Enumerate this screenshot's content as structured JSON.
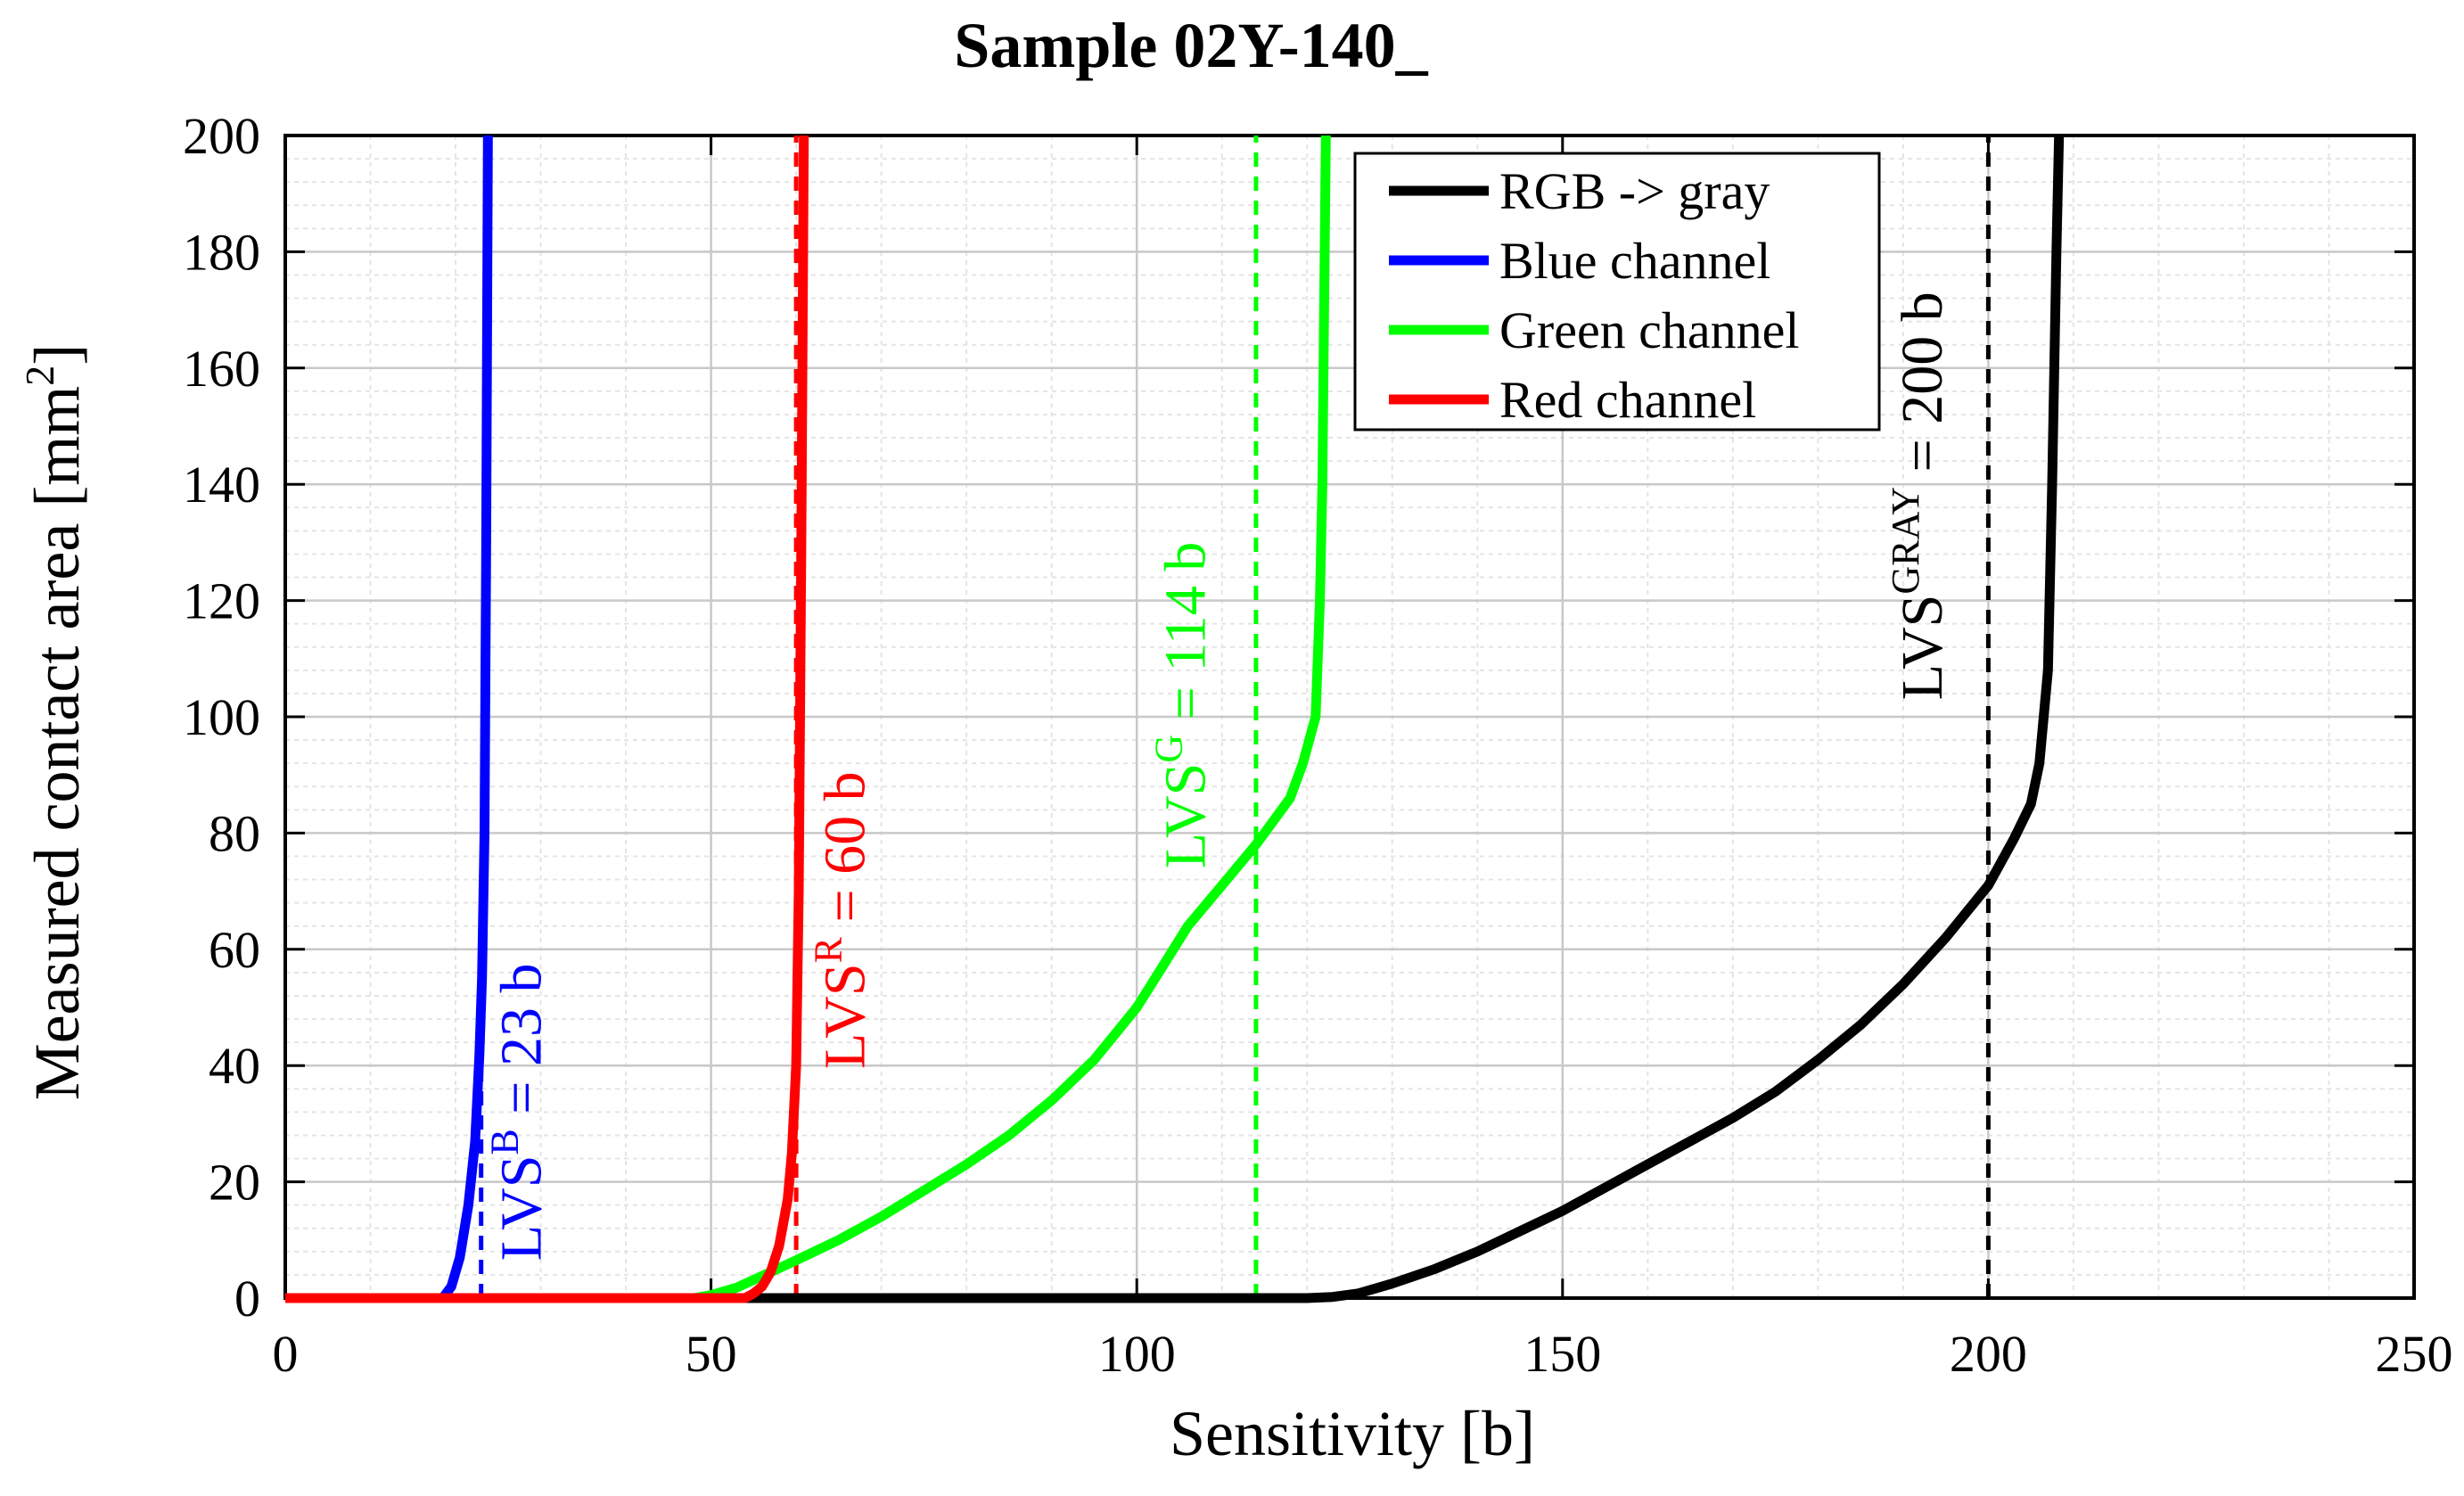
{
  "chart_data": {
    "type": "line",
    "title": "Sample 02Y-140_",
    "xlabel": "Sensitivity [b]",
    "ylabel_main": "Measured contact area [mm",
    "ylabel_sup": "2",
    "ylabel_end": "]",
    "xlim": [
      0,
      250
    ],
    "ylim": [
      0,
      200
    ],
    "x_ticks": [
      0,
      50,
      100,
      150,
      200,
      250
    ],
    "y_ticks": [
      0,
      20,
      40,
      60,
      80,
      100,
      120,
      140,
      160,
      180,
      200
    ],
    "x_minor_step": 10,
    "y_minor_step": 4,
    "grid": true,
    "legend_position": "top-right",
    "series": [
      {
        "name": "RGB -> gray",
        "color": "#000000",
        "points": [
          [
            0,
            0
          ],
          [
            120,
            0
          ],
          [
            123,
            0.2
          ],
          [
            126,
            0.8
          ],
          [
            130,
            2.5
          ],
          [
            135,
            5
          ],
          [
            140,
            8
          ],
          [
            145,
            11.5
          ],
          [
            150,
            15
          ],
          [
            155,
            19
          ],
          [
            160,
            23
          ],
          [
            165,
            27
          ],
          [
            170,
            31
          ],
          [
            175,
            35.5
          ],
          [
            180,
            41
          ],
          [
            185,
            47
          ],
          [
            190,
            54
          ],
          [
            195,
            62
          ],
          [
            200,
            71
          ],
          [
            203,
            79
          ],
          [
            205,
            85
          ],
          [
            206,
            92
          ],
          [
            207,
            108
          ],
          [
            207.5,
            140
          ],
          [
            208,
            180
          ],
          [
            208.3,
            200
          ]
        ]
      },
      {
        "name": "Blue channel",
        "color": "#0000ff",
        "points": [
          [
            0,
            0
          ],
          [
            18.5,
            0
          ],
          [
            19.5,
            2
          ],
          [
            20.5,
            7
          ],
          [
            21.5,
            16
          ],
          [
            22.3,
            27
          ],
          [
            22.8,
            42
          ],
          [
            23.1,
            55
          ],
          [
            23.4,
            80
          ],
          [
            23.6,
            130
          ],
          [
            23.8,
            200
          ]
        ]
      },
      {
        "name": "Green channel",
        "color": "#00ff00",
        "points": [
          [
            0,
            0
          ],
          [
            48,
            0
          ],
          [
            50,
            0.5
          ],
          [
            53,
            1.8
          ],
          [
            56,
            3.8
          ],
          [
            60,
            6.5
          ],
          [
            65,
            10
          ],
          [
            70,
            14
          ],
          [
            75,
            18.5
          ],
          [
            80,
            23
          ],
          [
            85,
            28
          ],
          [
            90,
            34
          ],
          [
            95,
            41
          ],
          [
            100,
            50
          ],
          [
            103,
            57
          ],
          [
            106,
            64
          ],
          [
            110,
            71
          ],
          [
            114,
            78
          ],
          [
            116,
            82
          ],
          [
            118,
            86
          ],
          [
            119.5,
            92
          ],
          [
            121,
            100
          ],
          [
            121.5,
            120
          ],
          [
            121.8,
            140
          ],
          [
            122,
            170
          ],
          [
            122.2,
            200
          ]
        ]
      },
      {
        "name": "Red channel",
        "color": "#ff0000",
        "points": [
          [
            0,
            0
          ],
          [
            54,
            0
          ],
          [
            55,
            0.8
          ],
          [
            56,
            2
          ],
          [
            57,
            4.5
          ],
          [
            58,
            9
          ],
          [
            59,
            17
          ],
          [
            59.5,
            25
          ],
          [
            60,
            40
          ],
          [
            60.3,
            70
          ],
          [
            60.6,
            130
          ],
          [
            60.9,
            200
          ]
        ]
      }
    ],
    "vlines": [
      {
        "x": 23,
        "ytop": 55,
        "color": "#0000ff"
      },
      {
        "x": 60,
        "ytop": 200,
        "color": "#ff0000"
      },
      {
        "x": 114,
        "ytop": 200,
        "color": "#00ff00"
      },
      {
        "x": 200,
        "ytop": 200,
        "color": "#000000"
      }
    ],
    "annotations": [
      {
        "id": "lvs-blue",
        "base": "LVS",
        "sup": "B",
        "text": " = 23 b",
        "color": "#0000ff",
        "x": 30,
        "y": 32
      },
      {
        "id": "lvs-red",
        "base": "LVS",
        "sup": "R",
        "text": " = 60 b",
        "color": "#ff0000",
        "x": 68,
        "y": 65
      },
      {
        "id": "lvs-green",
        "base": "LVS",
        "sup": "G",
        "text": " = 114 b",
        "color": "#00ff00",
        "x": 108,
        "y": 102
      },
      {
        "id": "lvs-gray",
        "base": "LVS",
        "sup": "GRAY",
        "text": " = 200 b",
        "color": "#000000",
        "x": 194.5,
        "y": 138
      }
    ]
  }
}
